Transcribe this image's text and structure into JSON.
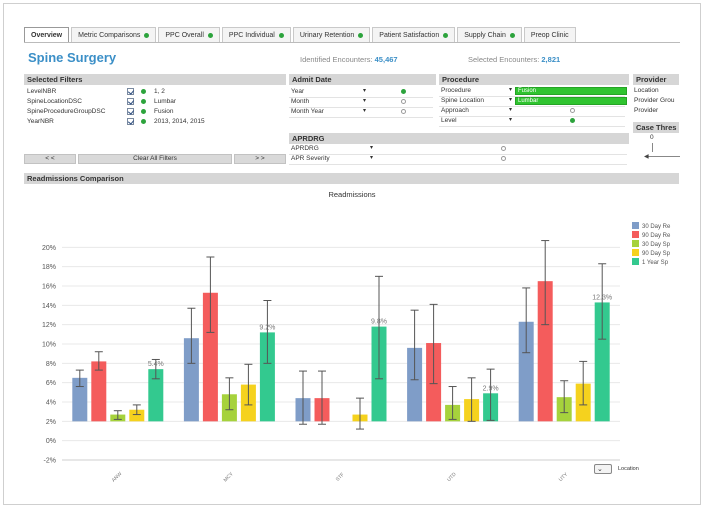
{
  "tabs": [
    {
      "label": "Overview",
      "active": true,
      "status": "none"
    },
    {
      "label": "Metric Comparisons",
      "active": false,
      "status": "green"
    },
    {
      "label": "PPC Overall",
      "active": false,
      "status": "green"
    },
    {
      "label": "PPC Individual",
      "active": false,
      "status": "green"
    },
    {
      "label": "Urinary Retention",
      "active": false,
      "status": "green"
    },
    {
      "label": "Patient Satisfaction",
      "active": false,
      "status": "green"
    },
    {
      "label": "Supply Chain",
      "active": false,
      "status": "green"
    },
    {
      "label": "Preop Clinic",
      "active": false,
      "status": "none"
    }
  ],
  "page_title": "Spine Surgery",
  "identified": {
    "label": "Identified Encounters:",
    "value": "45,467"
  },
  "selected": {
    "label": "Selected Encounters:",
    "value": "2,821"
  },
  "selected_filters": {
    "header": "Selected Filters",
    "items": [
      {
        "field": "LevelNBR",
        "value": "1, 2"
      },
      {
        "field": "SpineLocationDSC",
        "value": "Lumbar"
      },
      {
        "field": "SpineProcedureGroupDSC",
        "value": "Fusion"
      },
      {
        "field": "YearNBR",
        "value": "2013, 2014, 2015"
      }
    ],
    "prev": "< <",
    "clear": "Clear All Filters",
    "next": "> >"
  },
  "admit_date": {
    "header": "Admit Date",
    "items": [
      {
        "label": "Year",
        "state": "green"
      },
      {
        "label": "Month",
        "state": "grey"
      },
      {
        "label": "Month Year",
        "state": "grey"
      }
    ]
  },
  "aprdrg": {
    "header": "APRDRG",
    "items": [
      {
        "label": "APRDRG",
        "state": "grey"
      },
      {
        "label": "APR Severity",
        "state": "grey"
      }
    ]
  },
  "procedure": {
    "header": "Procedure",
    "items": [
      {
        "label": "Procedure",
        "value": "Fusion",
        "state": "filled"
      },
      {
        "label": "Spine Location",
        "value": "Lumbar",
        "state": "filled"
      },
      {
        "label": "Approach",
        "value": "",
        "state": "grey"
      },
      {
        "label": "Level",
        "value": "",
        "state": "green"
      }
    ]
  },
  "provider": {
    "header": "Provider",
    "items": [
      "Location",
      "Provider Grou",
      "Provider"
    ]
  },
  "case_threshold": {
    "header": "Case Thres",
    "value": "0"
  },
  "section_header": "Readmissions Comparison",
  "location_control": "Location",
  "chart_data": {
    "type": "bar",
    "title": "Readmissions",
    "categories": [
      "ANW",
      "MCY",
      "STF",
      "UTD",
      "UTY"
    ],
    "ylim": [
      -0.04,
      0.2
    ],
    "yticks": [
      "-2%",
      "0%",
      "2%",
      "4%",
      "6%",
      "8%",
      "10%",
      "12%",
      "14%",
      "16%",
      "18%",
      "20%"
    ],
    "legend_position": "right",
    "grid": true,
    "series": [
      {
        "name": "30 Day Re",
        "color": "#7f9dc8",
        "values": [
          0.045,
          0.086,
          0.024,
          0.076,
          0.103
        ],
        "err_low": [
          0.036,
          0.06,
          -0.003,
          0.043,
          0.071
        ],
        "err_high": [
          0.053,
          0.117,
          0.052,
          0.115,
          0.138
        ]
      },
      {
        "name": "90 Day Re",
        "color": "#f45c5c",
        "values": [
          0.062,
          0.133,
          0.024,
          0.081,
          0.145
        ],
        "err_low": [
          0.053,
          0.092,
          -0.003,
          0.039,
          0.1
        ],
        "err_high": [
          0.072,
          0.17,
          0.052,
          0.121,
          0.187
        ]
      },
      {
        "name": "30 Day Sp",
        "color": "#a6d23c",
        "values": [
          0.007,
          0.028,
          null,
          0.017,
          0.025
        ],
        "err_low": [
          0.002,
          0.012,
          null,
          0.002,
          0.009
        ],
        "err_high": [
          0.011,
          0.045,
          null,
          0.036,
          0.042
        ]
      },
      {
        "name": "90 Day Sp",
        "color": "#f5d21e",
        "values": [
          0.012,
          0.038,
          0.007,
          0.023,
          0.039
        ],
        "err_low": [
          0.007,
          0.017,
          -0.008,
          0.0,
          0.017
        ],
        "err_high": [
          0.017,
          0.059,
          0.024,
          0.045,
          0.062
        ]
      },
      {
        "name": "1 Year Sp",
        "color": "#33c98f",
        "values": [
          0.054,
          0.092,
          0.098,
          0.029,
          0.123
        ],
        "err_low": [
          0.044,
          0.06,
          0.044,
          0.001,
          0.085
        ],
        "err_high": [
          0.064,
          0.125,
          0.15,
          0.054,
          0.163
        ]
      }
    ],
    "data_labels": [
      {
        "series": "1 Year Sp",
        "category": "ANW",
        "text": "5.4%"
      },
      {
        "series": "1 Year Sp",
        "category": "MCY",
        "text": "9.2%"
      },
      {
        "series": "1 Year Sp",
        "category": "STF",
        "text": "9.8%"
      },
      {
        "series": "1 Year Sp",
        "category": "UTD",
        "text": "2.9%"
      },
      {
        "series": "1 Year Sp",
        "category": "UTY",
        "text": "12.3%"
      }
    ]
  }
}
